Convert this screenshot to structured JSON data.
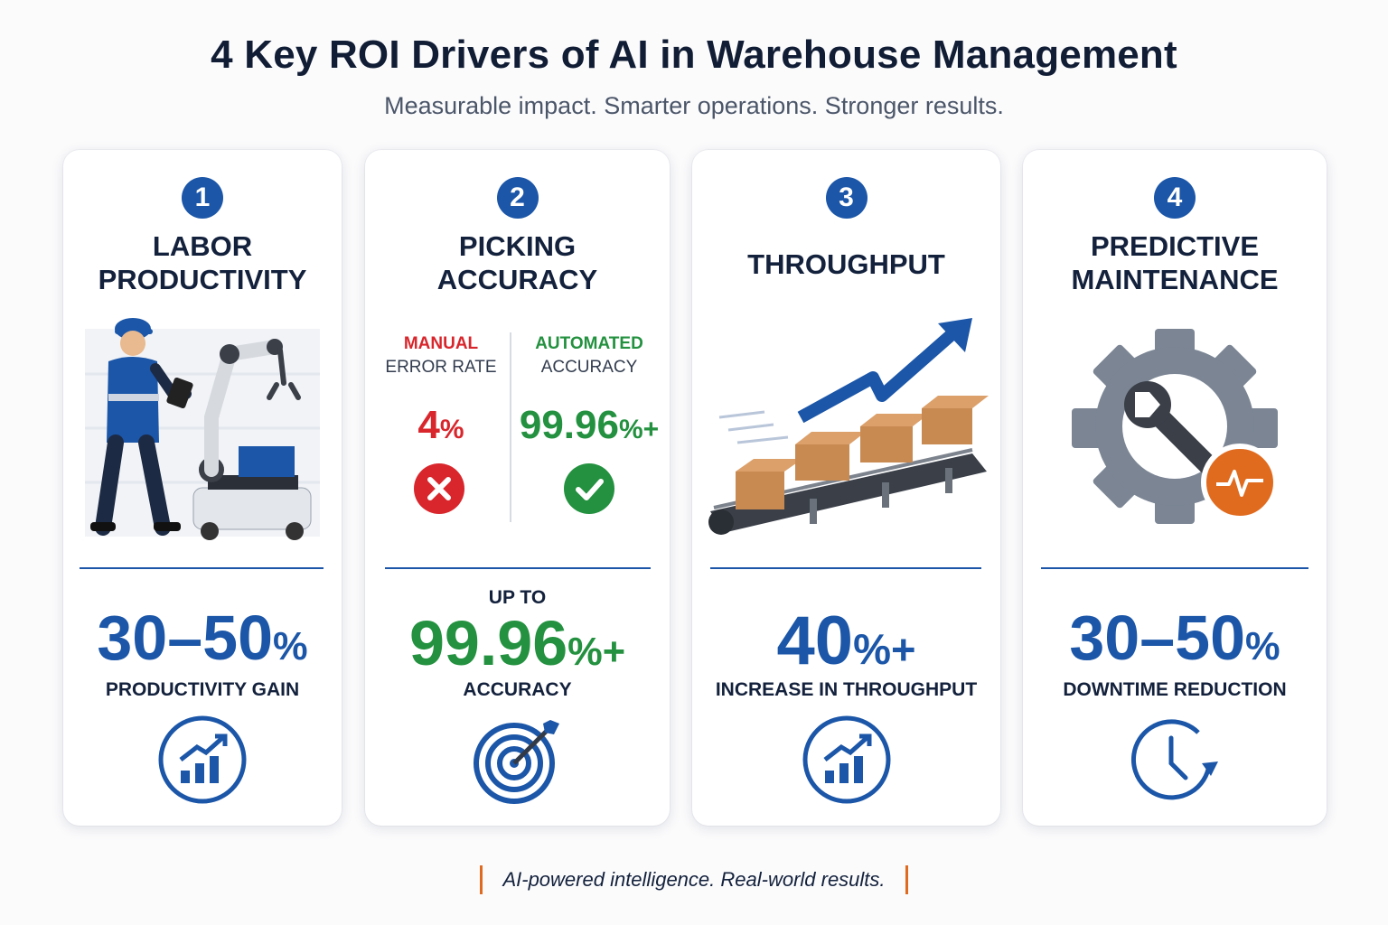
{
  "header": {
    "title": "4 Key ROI Drivers of AI in Warehouse Management",
    "subtitle": "Measurable impact. Smarter operations. Stronger results."
  },
  "colors": {
    "primary": "#1b56a8",
    "danger": "#d8262c",
    "success": "#23913f",
    "accent": "#e06b1f"
  },
  "cards": [
    {
      "number": "1",
      "title_line1": "LABOR",
      "title_line2": "PRODUCTIVITY",
      "illustration": "worker-and-robot-arm-illustration",
      "metric_value": "30–50",
      "metric_unit": "%",
      "metric_label": "PRODUCTIVITY GAIN",
      "icon": "bar-chart-up-icon"
    },
    {
      "number": "2",
      "title_line1": "PICKING",
      "title_line2": "ACCURACY",
      "comparison": {
        "left_key": "MANUAL",
        "left_sub": "ERROR RATE",
        "left_value": "4",
        "left_unit": "%",
        "left_icon": "x-circle-icon",
        "right_key": "AUTOMATED",
        "right_sub": "ACCURACY",
        "right_value": "99.96",
        "right_unit": "%+",
        "right_icon": "check-circle-icon"
      },
      "metric_prefix": "UP TO",
      "metric_value": "99.96",
      "metric_unit": "%+",
      "metric_label": "ACCURACY",
      "icon": "target-icon"
    },
    {
      "number": "3",
      "title_line1": "THROUGHPUT",
      "illustration": "conveyor-belt-boxes-illustration",
      "metric_value": "40",
      "metric_unit": "%+",
      "metric_label": "INCREASE IN THROUGHPUT",
      "icon": "bar-chart-up-icon"
    },
    {
      "number": "4",
      "title_line1": "PREDICTIVE",
      "title_line2": "MAINTENANCE",
      "illustration": "gear-wrench-illustration",
      "metric_value": "30–50",
      "metric_unit": "%",
      "metric_label": "DOWNTIME REDUCTION",
      "icon": "clock-icon"
    }
  ],
  "footer": {
    "tagline": "AI-powered intelligence. Real-world results."
  }
}
